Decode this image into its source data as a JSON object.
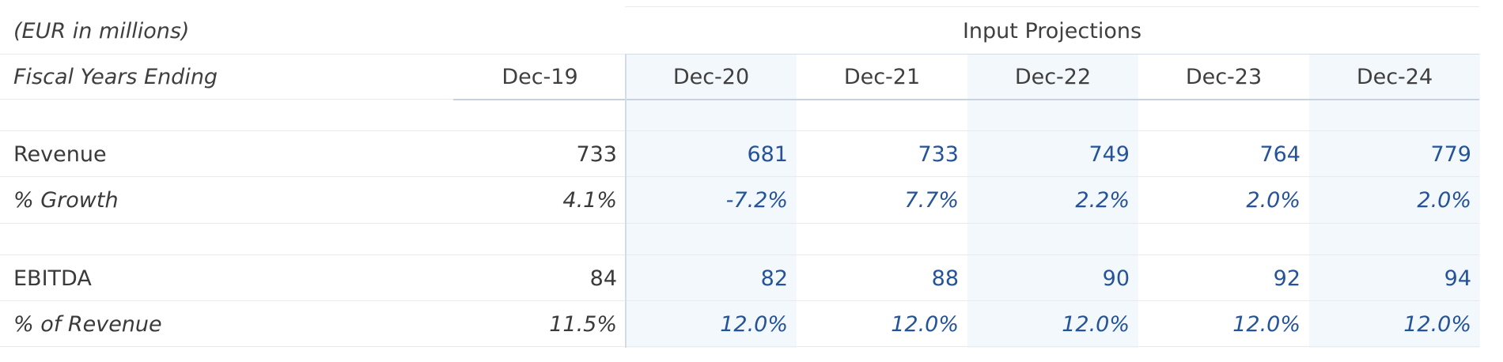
{
  "table": {
    "units_label": "(EUR in millions)",
    "group_header": "Input Projections",
    "fiscal_label": "Fiscal Years Ending",
    "columns": [
      "Dec-19",
      "Dec-20",
      "Dec-21",
      "Dec-22",
      "Dec-23",
      "Dec-24"
    ],
    "rows": [
      {
        "label": "Revenue",
        "values": [
          "733",
          "681",
          "733",
          "749",
          "764",
          "779"
        ]
      },
      {
        "label": "% Growth",
        "values": [
          "4.1%",
          "-7.2%",
          "7.7%",
          "2.2%",
          "2.0%",
          "2.0%"
        ]
      },
      {
        "label": "EBITDA",
        "values": [
          "84",
          "82",
          "88",
          "90",
          "92",
          "94"
        ]
      },
      {
        "label": "% of Revenue",
        "values": [
          "11.5%",
          "12.0%",
          "12.0%",
          "12.0%",
          "12.0%",
          "12.0%"
        ]
      }
    ]
  },
  "colors": {
    "projection_text": "#24539a",
    "projection_shade": "#f3f8fd",
    "text": "#3a3a3a",
    "grid": "#e8ebee"
  }
}
